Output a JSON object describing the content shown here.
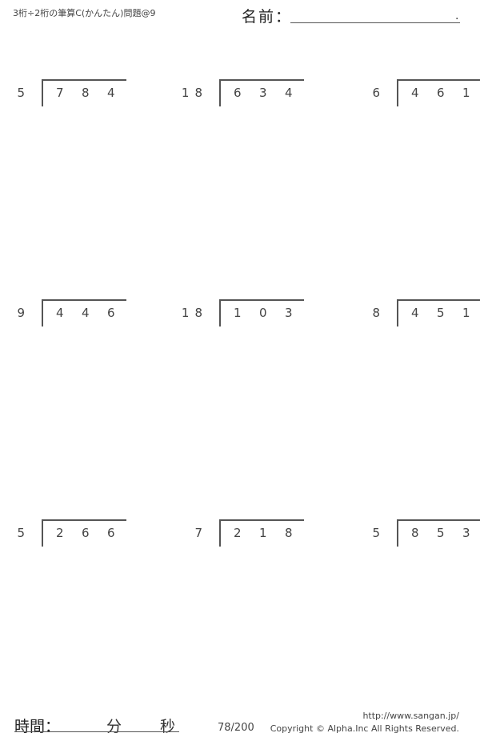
{
  "header": {
    "title": "3桁÷2桁の筆算C(かんたん)問題@9",
    "name_label": "名前：",
    "name_end": "."
  },
  "problems": [
    {
      "divisor": "5",
      "dividend": [
        "7",
        "8",
        "4"
      ]
    },
    {
      "divisor": "18",
      "dividend": [
        "6",
        "3",
        "4"
      ]
    },
    {
      "divisor": "6",
      "dividend": [
        "4",
        "6",
        "1"
      ]
    },
    {
      "divisor": "9",
      "dividend": [
        "4",
        "4",
        "6"
      ]
    },
    {
      "divisor": "18",
      "dividend": [
        "1",
        "0",
        "3"
      ]
    },
    {
      "divisor": "8",
      "dividend": [
        "4",
        "5",
        "1"
      ]
    },
    {
      "divisor": "5",
      "dividend": [
        "2",
        "6",
        "6"
      ]
    },
    {
      "divisor": "7",
      "dividend": [
        "2",
        "1",
        "8"
      ]
    },
    {
      "divisor": "5",
      "dividend": [
        "8",
        "5",
        "3"
      ]
    }
  ],
  "footer": {
    "time_label": "時間：",
    "minutes_label": "分",
    "seconds_label": "秒",
    "page": "78/200",
    "url": "http://www.sangan.jp/",
    "copyright": "Copyright © Alpha.Inc All Rights Reserved."
  }
}
